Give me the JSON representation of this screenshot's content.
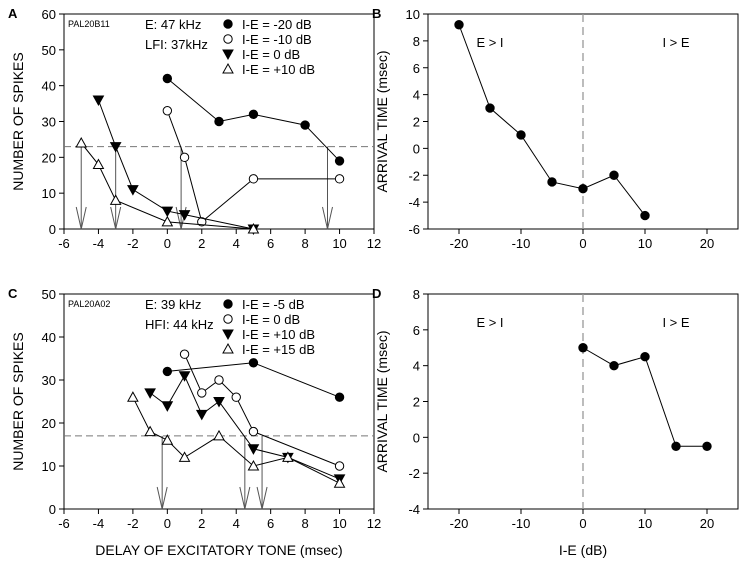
{
  "chart_data": [
    {
      "id": "A",
      "type": "line",
      "panel_label": "A",
      "tag": "PAL20B11",
      "info": [
        "E: 47 kHz",
        "LFI: 37kHz"
      ],
      "xlabel": "",
      "ylabel": "NUMBER OF SPIKES",
      "xlim": [
        -6,
        12
      ],
      "ylim": [
        0,
        60
      ],
      "xticks": [
        -6,
        -4,
        -2,
        0,
        2,
        4,
        6,
        8,
        10,
        12
      ],
      "yticks": [
        0,
        10,
        20,
        30,
        40,
        50,
        60
      ],
      "series": [
        {
          "name": "I-E = -20 dB",
          "marker": "filled-circle",
          "x": [
            0,
            3,
            5,
            8,
            10
          ],
          "y": [
            42,
            30,
            32,
            29,
            19
          ]
        },
        {
          "name": "I-E = -10 dB",
          "marker": "open-circle",
          "x": [
            0,
            1,
            2,
            5,
            10
          ],
          "y": [
            33,
            20,
            2,
            14,
            14
          ]
        },
        {
          "name": "I-E = 0 dB",
          "marker": "filled-triangle-down",
          "x": [
            -4,
            -3,
            -2,
            0,
            1,
            5
          ],
          "y": [
            36,
            23,
            11,
            5,
            4,
            0
          ]
        },
        {
          "name": "I-E = +10 dB",
          "marker": "open-triangle-up",
          "x": [
            -5,
            -4,
            -3,
            0,
            5
          ],
          "y": [
            24,
            18,
            8,
            2,
            0
          ]
        }
      ],
      "hline": 23,
      "arrows_x": [
        -5,
        -3,
        0.8,
        9.3
      ]
    },
    {
      "id": "B",
      "type": "line",
      "panel_label": "B",
      "xlabel": "",
      "ylabel": "ARRIVAL TIME (msec)",
      "xlim": [
        -25,
        25
      ],
      "ylim": [
        -6,
        10
      ],
      "xticks": [
        -20,
        -10,
        0,
        10,
        20
      ],
      "yticks": [
        -6,
        -4,
        -2,
        0,
        2,
        4,
        6,
        8,
        10
      ],
      "series": [
        {
          "name": "arrival time",
          "marker": "filled-circle",
          "x": [
            -20,
            -15,
            -10,
            -5,
            0,
            5,
            10
          ],
          "y": [
            9.2,
            3,
            1,
            -2.5,
            -3,
            -2,
            -5
          ]
        }
      ],
      "vline": 0,
      "region_labels": [
        "E > I",
        "I > E"
      ]
    },
    {
      "id": "C",
      "type": "line",
      "panel_label": "C",
      "tag": "PAL20A02",
      "info": [
        "E: 39 kHz",
        "HFI: 44 kHz"
      ],
      "xlabel": "DELAY OF EXCITATORY TONE (msec)",
      "ylabel": "NUMBER OF SPIKES",
      "xlim": [
        -6,
        12
      ],
      "ylim": [
        0,
        50
      ],
      "xticks": [
        -6,
        -4,
        -2,
        0,
        2,
        4,
        6,
        8,
        10,
        12
      ],
      "yticks": [
        0,
        10,
        20,
        30,
        40,
        50
      ],
      "series": [
        {
          "name": "I-E = -5 dB",
          "marker": "filled-circle",
          "x": [
            0,
            5,
            10
          ],
          "y": [
            32,
            34,
            26
          ]
        },
        {
          "name": "I-E = 0 dB",
          "marker": "open-circle",
          "x": [
            1,
            2,
            3,
            4,
            5,
            10
          ],
          "y": [
            36,
            27,
            30,
            26,
            18,
            10
          ]
        },
        {
          "name": "I-E = +10 dB",
          "marker": "filled-triangle-down",
          "x": [
            -1,
            0,
            1,
            2,
            3,
            5,
            7,
            10
          ],
          "y": [
            27,
            24,
            31,
            22,
            25,
            14,
            12,
            7
          ]
        },
        {
          "name": "I-E = +15 dB",
          "marker": "open-triangle-up",
          "x": [
            -2,
            -1,
            0,
            1,
            3,
            5,
            7,
            10
          ],
          "y": [
            26,
            18,
            16,
            12,
            17,
            10,
            12,
            6
          ]
        }
      ],
      "hline": 17,
      "arrows_x": [
        -0.3,
        4.5,
        5.5
      ]
    },
    {
      "id": "D",
      "type": "line",
      "panel_label": "D",
      "xlabel": "I-E (dB)",
      "ylabel": "ARRIVAL TIME  (msec)",
      "xlim": [
        -25,
        25
      ],
      "ylim": [
        -4,
        8
      ],
      "xticks": [
        -20,
        -10,
        0,
        10,
        20
      ],
      "yticks": [
        -4,
        -2,
        0,
        2,
        4,
        6,
        8
      ],
      "series": [
        {
          "name": "arrival time",
          "marker": "filled-circle",
          "x": [
            0,
            5,
            10,
            15,
            20
          ],
          "y": [
            5,
            4,
            4.5,
            -0.5,
            -0.5
          ]
        }
      ],
      "vline": 0,
      "region_labels": [
        "E > I",
        "I > E"
      ]
    }
  ]
}
